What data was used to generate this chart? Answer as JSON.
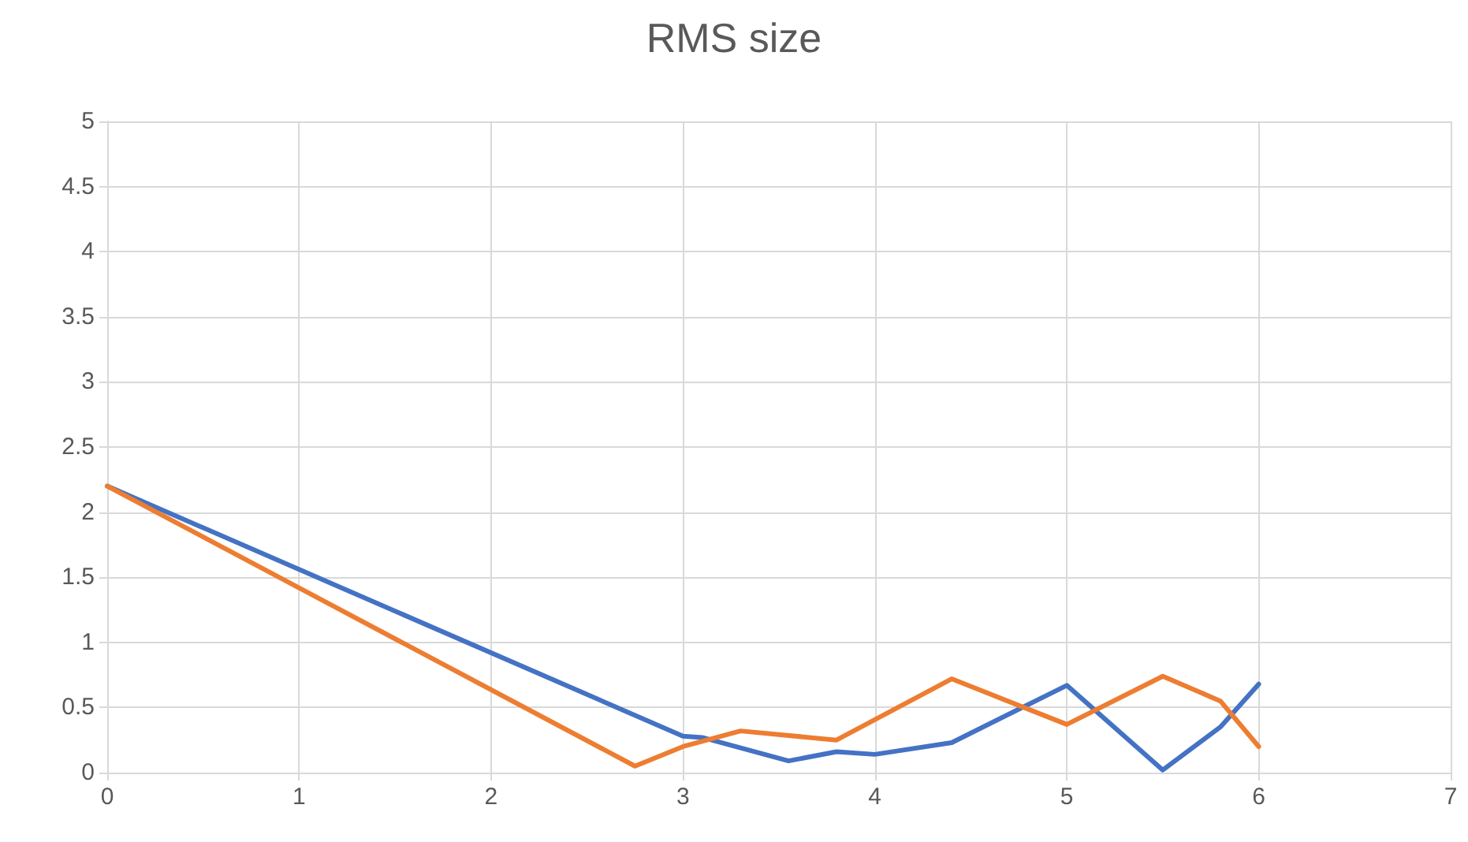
{
  "chart_data": {
    "type": "line",
    "title": "RMS size",
    "xlim": [
      0,
      7
    ],
    "xticks": [
      0,
      1,
      2,
      3,
      4,
      5,
      6,
      7
    ],
    "ylim": [
      0,
      5
    ],
    "yticks": [
      0,
      0.5,
      1,
      1.5,
      2,
      2.5,
      3,
      3.5,
      4,
      4.5,
      5
    ],
    "grid": true,
    "marker": "none",
    "line_style": "solid",
    "series": [
      {
        "color": "#4472c4",
        "x": [
          0,
          3,
          3.1,
          3.55,
          3.8,
          4,
          4.4,
          5,
          5.5,
          5.8,
          6
        ],
        "values": [
          2.2,
          0.28,
          0.27,
          0.09,
          0.16,
          0.14,
          0.23,
          0.67,
          0.02,
          0.35,
          0.68
        ]
      },
      {
        "color": "#ed7d31",
        "x": [
          0,
          2.75,
          3,
          3.3,
          3.8,
          4.4,
          5,
          5.5,
          5.8,
          6
        ],
        "values": [
          2.2,
          0.05,
          0.2,
          0.32,
          0.25,
          0.72,
          0.37,
          0.74,
          0.55,
          0.2
        ]
      }
    ]
  }
}
